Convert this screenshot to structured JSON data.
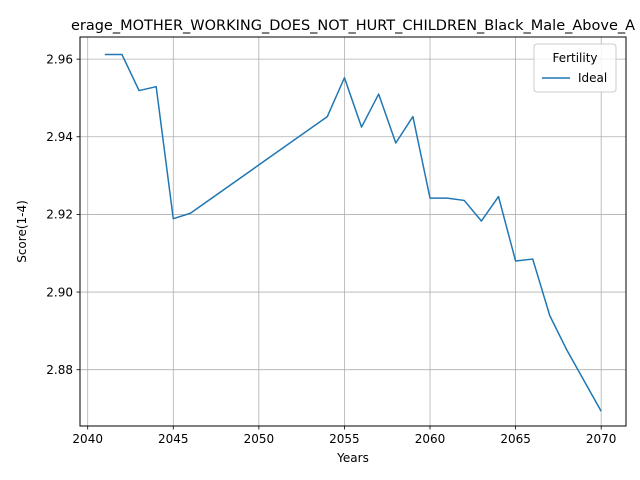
{
  "chart_data": {
    "type": "line",
    "title": "erage_MOTHER_WORKING_DOES_NOT_HURT_CHILDREN_Black_Male_Above_A",
    "xlabel": "Years",
    "ylabel": "Score(1-4)",
    "xlim": [
      2039.55,
      2071.45
    ],
    "ylim": [
      2.8655,
      2.9657
    ],
    "xticks": [
      2040,
      2045,
      2050,
      2055,
      2060,
      2065,
      2070
    ],
    "xtick_labels": [
      "2040",
      "2045",
      "2050",
      "2055",
      "2060",
      "2065",
      "2070"
    ],
    "yticks": [
      2.88,
      2.9,
      2.92,
      2.94,
      2.96
    ],
    "ytick_labels": [
      "2.88",
      "2.90",
      "2.92",
      "2.94",
      "2.96"
    ],
    "grid": true,
    "legend": {
      "title": "Fertility",
      "placement": "top-right"
    },
    "series": [
      {
        "name": "Ideal",
        "color": "#1f77b4",
        "x": [
          2041,
          2042,
          2043,
          2044,
          2045,
          2046,
          2054,
          2055,
          2056,
          2057,
          2058,
          2059,
          2060,
          2061,
          2062,
          2063,
          2064,
          2065,
          2066,
          2067,
          2068,
          2070
        ],
        "y": [
          2.9612,
          2.9612,
          2.9519,
          2.9529,
          2.9189,
          2.9203,
          2.9452,
          2.9552,
          2.9425,
          2.951,
          2.9384,
          2.9452,
          2.9242,
          2.9242,
          2.9236,
          2.9183,
          2.9246,
          2.908,
          2.9085,
          2.8939,
          2.885,
          2.8693
        ]
      }
    ]
  }
}
